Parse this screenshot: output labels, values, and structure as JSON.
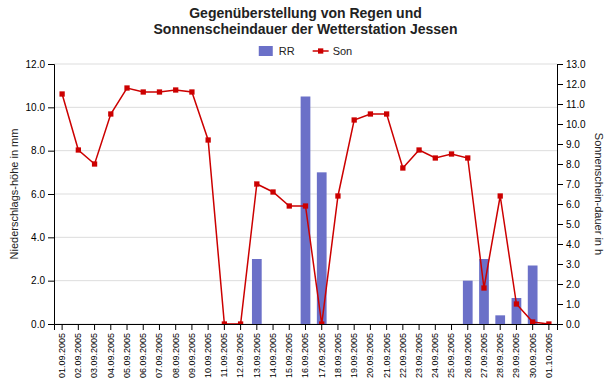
{
  "chart_data": {
    "type": "bar",
    "title": "Gegenüberstellung von Regen und\nSonnenscheindauer der Wetterstation Jessen",
    "categories": [
      "01.09.2005",
      "02.09.2005",
      "03.09.2005",
      "04.09.2005",
      "05.09.2005",
      "06.09.2005",
      "07.09.2005",
      "08.09.2005",
      "09.09.2005",
      "10.09.2005",
      "11.09.2005",
      "12.09.2005",
      "13.09.2005",
      "14.09.2005",
      "15.09.2005",
      "16.09.2005",
      "17.09.2005",
      "18.09.2005",
      "19.09.2005",
      "20.09.2005",
      "21.09.2005",
      "22.09.2005",
      "23.09.2005",
      "24.09.2005",
      "25.09.2005",
      "26.09.2005",
      "27.09.2005",
      "28.09.2005",
      "29.09.2005",
      "30.09.2005",
      "01.10.2005"
    ],
    "series": [
      {
        "name": "RR",
        "type": "bar",
        "color": "#6b70c8",
        "values": [
          0.0,
          0.0,
          0.0,
          0.0,
          0.0,
          0.0,
          0.0,
          0.0,
          0.0,
          0.0,
          0.0,
          0.0,
          3.0,
          0.0,
          0.0,
          10.5,
          7.0,
          0.0,
          0.0,
          0.0,
          0.0,
          0.0,
          0.0,
          0.0,
          0.0,
          2.0,
          3.0,
          0.4,
          1.2,
          2.7,
          0.0
        ]
      },
      {
        "name": "Son",
        "type": "line",
        "axis": "y2",
        "color": "#cc0000",
        "marker": "square",
        "values": [
          11.5,
          8.7,
          8.0,
          10.5,
          11.8,
          11.6,
          11.6,
          11.7,
          11.6,
          9.2,
          0.0,
          0.0,
          7.0,
          6.6,
          5.9,
          5.9,
          0.0,
          6.4,
          10.2,
          10.5,
          10.5,
          7.8,
          8.7,
          8.3,
          8.5,
          8.3,
          1.8,
          6.4,
          1.0,
          0.1,
          0.0
        ]
      }
    ],
    "ylabel": "Niederschlags-höhe in mm",
    "y2label": "Sonnenschein-dauer in h",
    "ylim": [
      0.0,
      12.0
    ],
    "yticks": [
      {
        "value": 0.0,
        "label": "0.0"
      },
      {
        "value": 2.0,
        "label": "2.0"
      },
      {
        "value": 4.0,
        "label": "4.0"
      },
      {
        "value": 6.0,
        "label": "6.0"
      },
      {
        "value": 8.0,
        "label": "8.0"
      },
      {
        "value": 10.0,
        "label": "10.0"
      },
      {
        "value": 12.0,
        "label": "12.0"
      }
    ],
    "y2lim": [
      0.0,
      13.0
    ],
    "y2ticks": [
      {
        "value": 0.0,
        "label": "0.0"
      },
      {
        "value": 1.0,
        "label": "1.0"
      },
      {
        "value": 2.0,
        "label": "2.0"
      },
      {
        "value": 3.0,
        "label": "3.0"
      },
      {
        "value": 4.0,
        "label": "4.0"
      },
      {
        "value": 5.0,
        "label": "5.0"
      },
      {
        "value": 6.0,
        "label": "6.0"
      },
      {
        "value": 7.0,
        "label": "7.0"
      },
      {
        "value": 8.0,
        "label": "8.0"
      },
      {
        "value": 9.0,
        "label": "9.0"
      },
      {
        "value": 10.0,
        "label": "10.0"
      },
      {
        "value": 11.0,
        "label": "11.0"
      },
      {
        "value": 12.0,
        "label": "12.0"
      },
      {
        "value": 13.0,
        "label": "13.0"
      }
    ],
    "grid": true,
    "legend": "top"
  }
}
